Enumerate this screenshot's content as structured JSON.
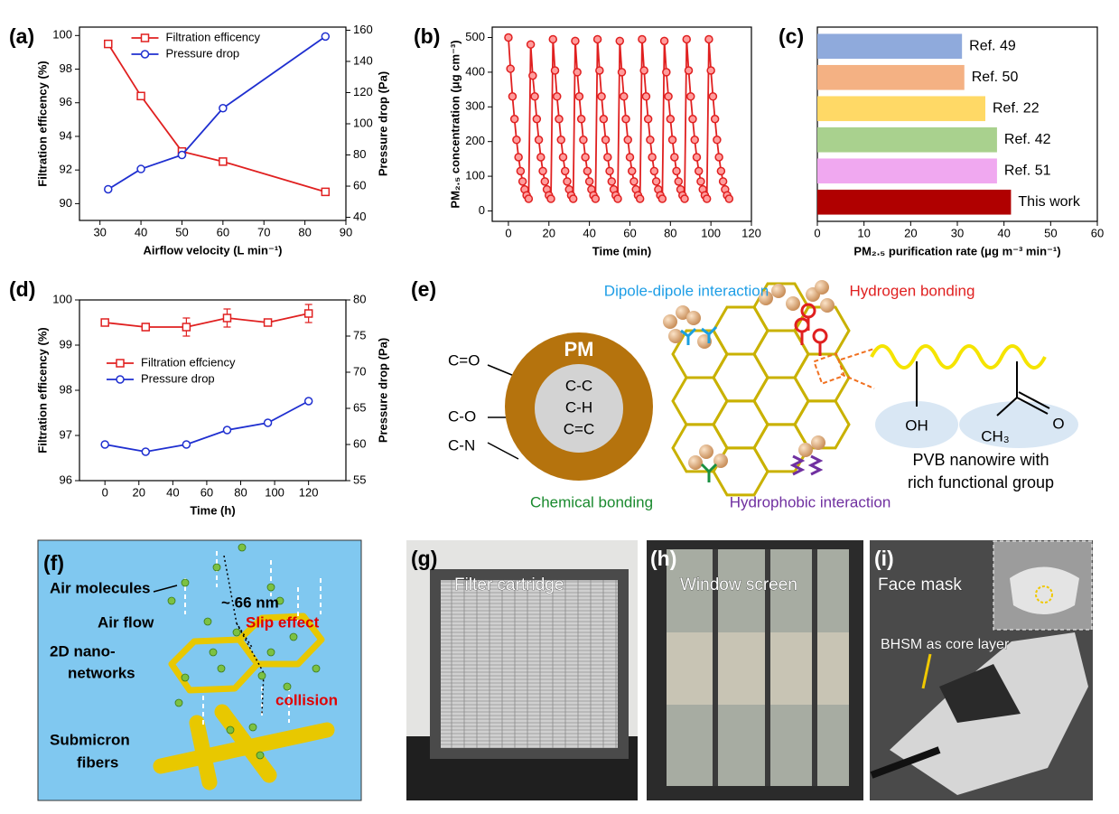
{
  "chart_data": [
    {
      "type": "line",
      "panel": "(a)",
      "xlabel": "Airflow velocity (L min⁻¹)",
      "ylabel": "Filtration efficency (%)",
      "y2label": "Pressure drop (Pa)",
      "x": [
        32,
        40,
        50,
        60,
        85
      ],
      "series": [
        {
          "name": "Filtration efficency",
          "color": "#e02020",
          "marker": "square",
          "values": [
            99.5,
            96.4,
            93.1,
            92.5,
            90.7
          ]
        },
        {
          "name": "Pressure drop",
          "color": "#1f2fd0",
          "marker": "circle",
          "axis": "y2",
          "values": [
            58,
            71,
            80,
            110,
            156
          ]
        }
      ],
      "xlim": [
        25,
        90
      ],
      "xticks": [
        30,
        40,
        50,
        60,
        70,
        80,
        90
      ],
      "ylim": [
        89,
        100.5
      ],
      "yticks": [
        90,
        92,
        94,
        96,
        98,
        100
      ],
      "y2lim": [
        38,
        162
      ],
      "y2ticks": [
        40,
        60,
        80,
        100,
        120,
        140,
        160
      ],
      "legend": "upper center"
    },
    {
      "type": "line",
      "panel": "(b)",
      "xlabel": "Time (min)",
      "ylabel": "PM₂.₅ concentration (μg cm⁻³)",
      "color": "#e02020",
      "marker": "circle",
      "marker_fill": "#ff9c9c",
      "x": [
        0,
        1,
        2,
        3,
        4,
        5,
        6,
        7,
        8,
        9,
        10,
        11,
        12,
        13,
        14,
        15,
        16,
        17,
        18,
        19,
        20,
        21,
        22,
        23,
        24,
        25,
        26,
        27,
        28,
        29,
        30,
        31,
        32,
        33,
        34,
        35,
        36,
        37,
        38,
        39,
        40,
        41,
        42,
        43,
        44,
        45,
        46,
        47,
        48,
        49,
        50,
        51,
        52,
        53,
        54,
        55,
        56,
        57,
        58,
        59,
        60,
        61,
        62,
        63,
        64,
        65,
        66,
        67,
        68,
        69,
        70,
        71,
        72,
        73,
        74,
        75,
        76,
        77,
        78,
        79,
        80,
        81,
        82,
        83,
        84,
        85,
        86,
        87,
        88,
        89,
        90,
        91,
        92,
        93,
        94,
        95,
        96,
        97,
        98,
        99,
        100,
        101,
        102,
        103,
        104,
        105,
        106,
        107,
        108,
        109
      ],
      "values": [
        500,
        410,
        330,
        265,
        205,
        155,
        115,
        85,
        62,
        45,
        35,
        480,
        390,
        330,
        265,
        205,
        155,
        115,
        85,
        62,
        45,
        35,
        495,
        405,
        330,
        265,
        205,
        155,
        115,
        85,
        62,
        45,
        35,
        490,
        400,
        330,
        265,
        205,
        155,
        115,
        85,
        62,
        45,
        35,
        495,
        405,
        330,
        265,
        205,
        155,
        115,
        85,
        62,
        45,
        35,
        490,
        400,
        330,
        265,
        205,
        155,
        115,
        85,
        62,
        45,
        35,
        495,
        405,
        330,
        265,
        205,
        155,
        115,
        85,
        62,
        45,
        35,
        490,
        400,
        330,
        265,
        205,
        155,
        115,
        85,
        62,
        45,
        35,
        495,
        405,
        330,
        265,
        205,
        155,
        115,
        85,
        62,
        45,
        35,
        495,
        405,
        330,
        265,
        205,
        155,
        115,
        85,
        62,
        45,
        35
      ],
      "xlim": [
        -8,
        120
      ],
      "xticks": [
        0,
        20,
        40,
        60,
        80,
        100,
        120
      ],
      "ylim": [
        -30,
        530
      ],
      "yticks": [
        0,
        100,
        200,
        300,
        400,
        500
      ]
    },
    {
      "type": "bar",
      "orientation": "horizontal",
      "panel": "(c)",
      "xlabel": "PM₂.₅ purification rate (μg m⁻³ min⁻¹)",
      "categories": [
        "Ref. 49",
        "Ref. 50",
        "Ref. 22",
        "Ref. 42",
        "Ref. 51",
        "This work"
      ],
      "values": [
        31,
        31.5,
        36,
        38.5,
        38.5,
        41.5
      ],
      "colors": [
        "#8faadc",
        "#f4b183",
        "#ffd966",
        "#a9d18e",
        "#f0a8f0",
        "#b00000"
      ],
      "xlim": [
        0,
        60
      ],
      "xticks": [
        0,
        10,
        20,
        30,
        40,
        50,
        60
      ]
    },
    {
      "type": "line",
      "panel": "(d)",
      "xlabel": "Time (h)",
      "ylabel": "Filtration efficency (%)",
      "y2label": "Pressure drop (Pa)",
      "x": [
        0,
        24,
        48,
        72,
        96,
        120
      ],
      "series": [
        {
          "name": "Filtration effciency",
          "color": "#e02020",
          "marker": "square",
          "values": [
            99.5,
            99.4,
            99.4,
            99.6,
            99.5,
            99.7
          ],
          "errors": [
            0.06,
            0.08,
            0.2,
            0.2,
            0.06,
            0.2
          ]
        },
        {
          "name": "Pressure drop",
          "color": "#1f2fd0",
          "marker": "circle",
          "axis": "y2",
          "values": [
            60,
            59,
            60,
            62,
            63,
            66
          ]
        }
      ],
      "xlim": [
        -15,
        142
      ],
      "xticks": [
        0,
        20,
        40,
        60,
        80,
        100,
        120
      ],
      "ylim": [
        96,
        100
      ],
      "yticks": [
        96,
        97,
        98,
        99,
        100
      ],
      "y2lim": [
        55,
        80
      ],
      "y2ticks": [
        55,
        60,
        65,
        70,
        75,
        80
      ],
      "legend": "center left"
    }
  ],
  "diagram_e": {
    "panel": "(e)",
    "pm": "PM",
    "core": [
      "C-C",
      "C-H",
      "C=C"
    ],
    "groups": [
      "C=O",
      "C-O",
      "C-N"
    ],
    "dipole": "Dipole-dipole interaction",
    "hydrogen": "Hydrogen bonding",
    "chemical": "Chemical bonding",
    "hydrophobic": "Hydrophobic interaction",
    "oh": "OH",
    "ch3": "CH₃",
    "o": "O",
    "pvb": [
      "PVB nanowire with",
      "rich functional group"
    ]
  },
  "diagram_f": {
    "panel": "(f)",
    "air_molecules": "Air molecules",
    "size": "~ 66 nm",
    "slip": "Slip effect",
    "air_flow": "Air flow",
    "networks": [
      "2D nano-",
      "networks"
    ],
    "collision": "collision",
    "fibers": [
      "Submicron",
      "fibers"
    ]
  },
  "photos": [
    {
      "panel": "(g)",
      "caption": "Filter cartridge"
    },
    {
      "panel": "(h)",
      "caption": "Window screen"
    },
    {
      "panel": "(i)",
      "caption": "Face mask",
      "annotation": "BHSM as core layer"
    }
  ]
}
